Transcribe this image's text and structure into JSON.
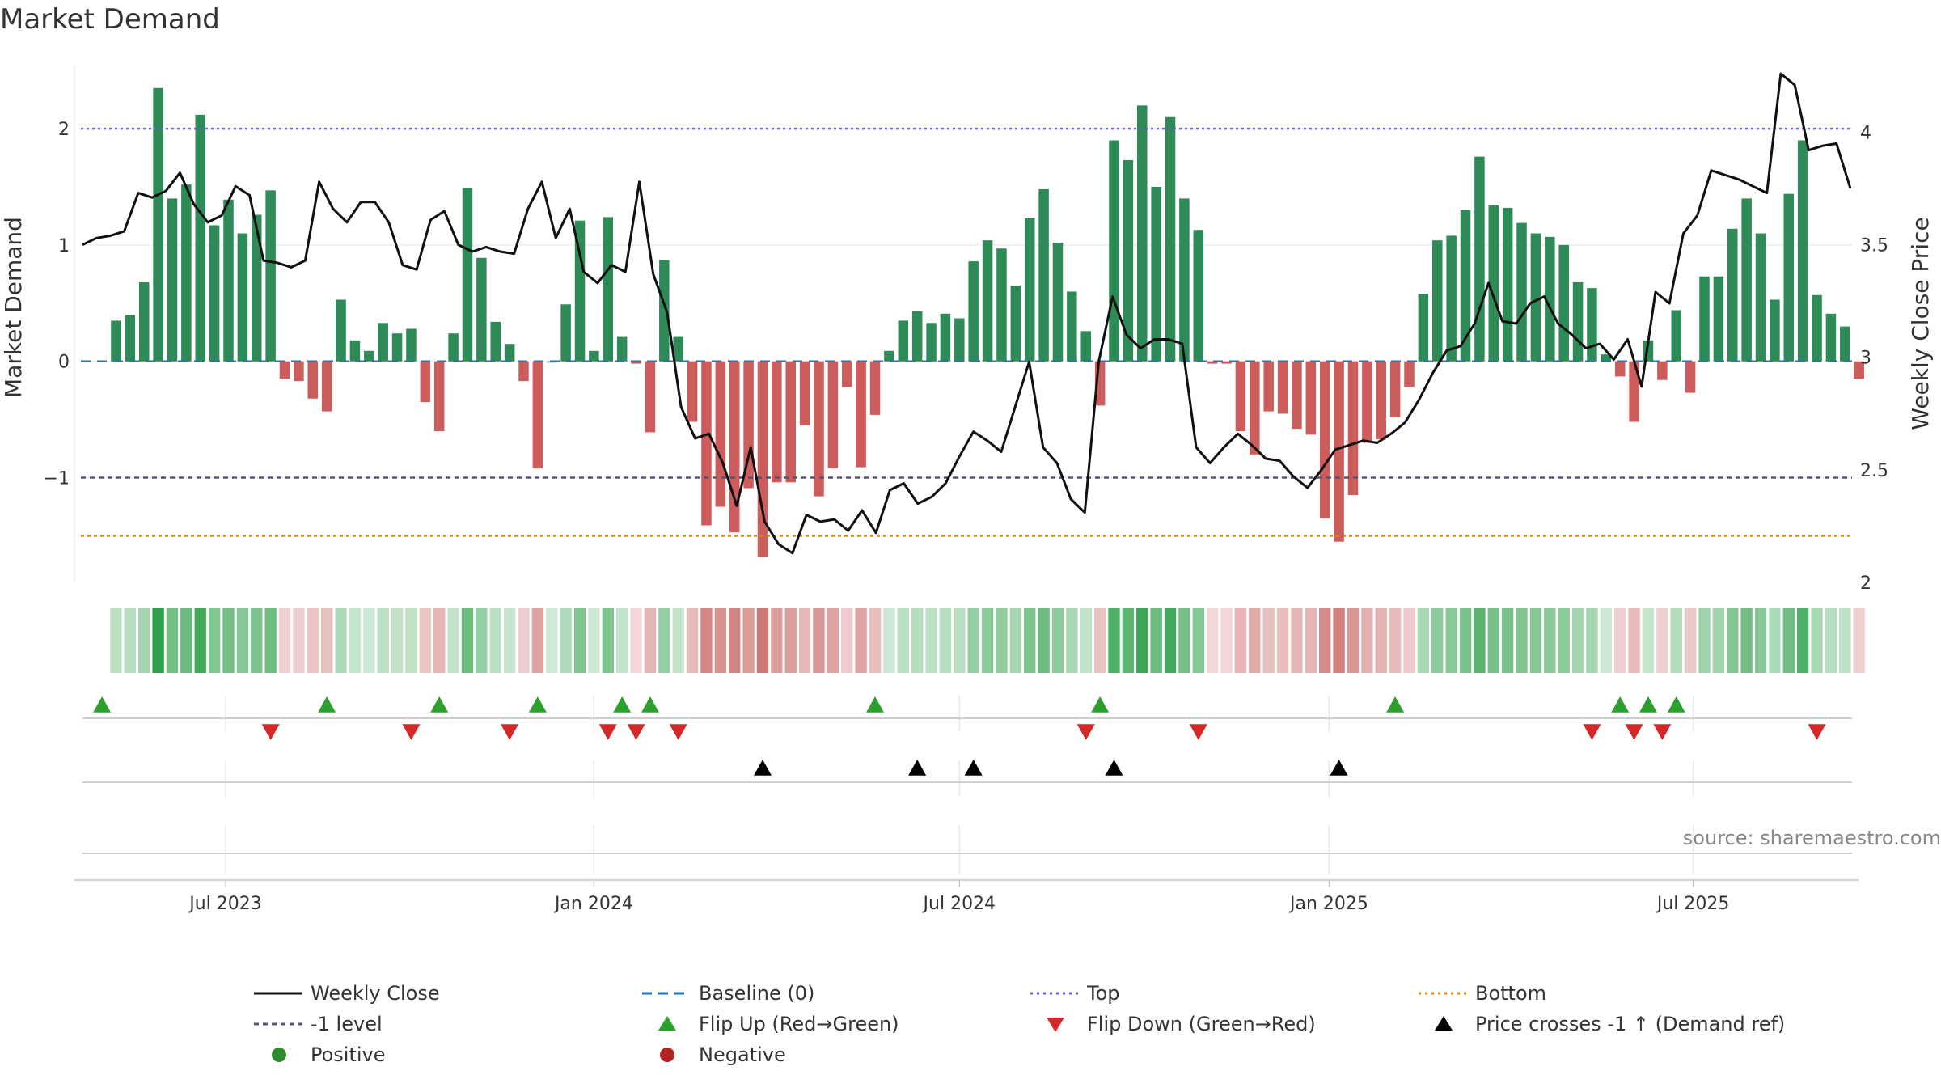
{
  "title": "Market Demand",
  "source": "source: sharemaestro.com",
  "colors": {
    "positive_bar": "#2e8b57",
    "negative_bar": "#cd5c5c",
    "price_line": "#111111",
    "baseline": "#1f77b4",
    "top_line": "#6a5acd",
    "minus1_line": "#555577",
    "bottom_line": "#e08a00",
    "flip_up": "#2ca02c",
    "flip_down": "#d62728",
    "cross": "#000000",
    "legend_positive": "#2e8b2e",
    "legend_negative": "#b22222"
  },
  "legend": [
    {
      "label": "Weekly Close",
      "symbol": "line-black"
    },
    {
      "label": "Baseline (0)",
      "symbol": "dash-blue"
    },
    {
      "label": "Top",
      "symbol": "dot-purple"
    },
    {
      "label": "Bottom",
      "symbol": "dot-orange"
    },
    {
      "label": "-1 level",
      "symbol": "dash-gray"
    },
    {
      "label": "Flip Up (Red→Green)",
      "symbol": "tri-up-green"
    },
    {
      "label": "Flip Down (Green→Red)",
      "symbol": "tri-down-red"
    },
    {
      "label": "Price crosses -1 ↑ (Demand ref)",
      "symbol": "tri-up-black"
    },
    {
      "label": "Positive",
      "symbol": "circle-green"
    },
    {
      "label": "Negative",
      "symbol": "circle-red"
    }
  ],
  "chart_data": {
    "type": "bar",
    "title": "Market Demand",
    "ylabel": "Market Demand",
    "y2label": "Weekly Close Price",
    "ylim": [
      -1.9,
      2.55
    ],
    "y2lim": [
      2.0,
      4.3
    ],
    "yticks": [
      2,
      1,
      0,
      -1
    ],
    "ytick_labels": [
      "2",
      "1",
      "0",
      "−1"
    ],
    "y2ticks": [
      4,
      3.5,
      3,
      2.5,
      2
    ],
    "y2tick_labels": [
      "4",
      "3.5",
      "3",
      "2.5",
      "2"
    ],
    "reference_lines": {
      "top": 2.0,
      "baseline": 0.0,
      "minus_one": -1.0,
      "bottom": -1.5
    },
    "x_start_week": -13,
    "x_range": [
      -15.5,
      110.5
    ],
    "xticks": [
      {
        "label": "Jul 2023",
        "week": -5.2
      },
      {
        "label": "Jan 2024",
        "week": 21
      },
      {
        "label": "Jul 2024",
        "week": 47
      },
      {
        "label": "Jan 2025",
        "week": 73.3
      },
      {
        "label": "Jul 2025",
        "week": 99.2
      }
    ],
    "demand": [
      0.35,
      0.4,
      0.68,
      2.35,
      1.4,
      1.52,
      2.12,
      1.17,
      1.39,
      1.1,
      1.26,
      1.47,
      -0.15,
      -0.17,
      -0.32,
      -0.43,
      0.53,
      0.18,
      0.09,
      0.33,
      0.24,
      0.28,
      -0.35,
      -0.6,
      0.24,
      1.49,
      0.89,
      0.34,
      0.15,
      -0.17,
      -0.92,
      0.0,
      0.49,
      1.21,
      0.09,
      1.24,
      0.21,
      -0.02,
      -0.61,
      0.87,
      0.21,
      -0.52,
      -1.41,
      -1.25,
      -1.47,
      -1.09,
      -1.68,
      -1.04,
      -1.04,
      -0.55,
      -1.16,
      -0.92,
      -0.22,
      -0.91,
      -0.46,
      0.09,
      0.35,
      0.43,
      0.33,
      0.41,
      0.37,
      0.86,
      1.04,
      0.97,
      0.65,
      1.23,
      1.48,
      1.02,
      0.6,
      0.26,
      -0.38,
      1.9,
      1.73,
      2.2,
      1.5,
      2.1,
      1.4,
      1.13,
      -0.02,
      -0.02,
      -0.6,
      -0.8,
      -0.43,
      -0.45,
      -0.58,
      -0.63,
      -1.35,
      -1.55,
      -1.15,
      -0.7,
      -0.67,
      -0.48,
      -0.22,
      0.58,
      1.04,
      1.08,
      1.3,
      1.76,
      1.34,
      1.32,
      1.19,
      1.1,
      1.07,
      1.0,
      0.68,
      0.63,
      0.06,
      -0.13,
      -0.52,
      0.18,
      -0.16,
      0.44,
      -0.27,
      0.73,
      0.73,
      1.14,
      1.4,
      1.1,
      0.53,
      1.44,
      1.9,
      0.57,
      0.41,
      0.3,
      -0.15
    ],
    "weekly_close": [
      3.5,
      3.53,
      3.54,
      3.56,
      3.73,
      3.71,
      3.74,
      3.82,
      3.68,
      3.6,
      3.63,
      3.76,
      3.72,
      3.43,
      3.42,
      3.4,
      3.43,
      3.78,
      3.66,
      3.6,
      3.69,
      3.69,
      3.6,
      3.41,
      3.39,
      3.61,
      3.65,
      3.5,
      3.47,
      3.49,
      3.47,
      3.46,
      3.66,
      3.78,
      3.53,
      3.66,
      3.38,
      3.33,
      3.41,
      3.38,
      3.78,
      3.37,
      3.2,
      2.78,
      2.64,
      2.66,
      2.53,
      2.34,
      2.6,
      2.27,
      2.17,
      2.13,
      2.3,
      2.27,
      2.28,
      2.23,
      2.32,
      2.22,
      2.41,
      2.44,
      2.35,
      2.38,
      2.44,
      2.56,
      2.67,
      2.63,
      2.58,
      2.78,
      2.98,
      2.6,
      2.53,
      2.37,
      2.31,
      2.98,
      3.27,
      3.1,
      3.04,
      3.08,
      3.08,
      3.06,
      2.6,
      2.53,
      2.6,
      2.66,
      2.61,
      2.55,
      2.54,
      2.47,
      2.42,
      2.5,
      2.59,
      2.61,
      2.63,
      2.62,
      2.66,
      2.71,
      2.81,
      2.93,
      3.03,
      3.05,
      3.15,
      3.33,
      3.16,
      3.15,
      3.24,
      3.27,
      3.15,
      3.1,
      3.04,
      3.06,
      2.99,
      3.08,
      2.87,
      3.29,
      3.24,
      3.55,
      3.63,
      3.83,
      3.81,
      3.79,
      3.76,
      3.73,
      4.26,
      4.21,
      3.92,
      3.94,
      3.95,
      3.75
    ],
    "flip_up_weeks": [
      -14,
      2,
      10,
      17,
      23,
      25,
      41,
      57,
      78,
      94,
      96,
      98
    ],
    "flip_down_weeks": [
      -2,
      8,
      15,
      22,
      24,
      27,
      56,
      64,
      92,
      95,
      97,
      108
    ],
    "cross_weeks": [
      33,
      44,
      48,
      58,
      74
    ]
  }
}
